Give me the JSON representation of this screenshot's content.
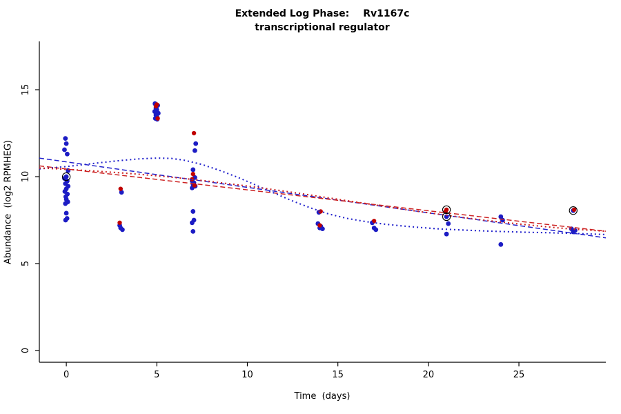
{
  "title": {
    "part1": "Extended Log Phase:",
    "part2": "Rv1167c",
    "line2": "transcriptional regulator"
  },
  "chart_data": {
    "type": "scatter",
    "title": "Extended Log Phase: Rv1167c  transcriptional regulator",
    "xlabel": "Time  (days)",
    "ylabel": "Abundance  (log2 RPMHEG)",
    "xlim": [
      -1.49,
      29.8
    ],
    "ylim": [
      -0.675,
      17.78
    ],
    "xticks": [
      0,
      5,
      10,
      15,
      20,
      25
    ],
    "yticks": [
      0,
      5,
      10,
      15
    ],
    "grid": false,
    "legend": "none",
    "series": [
      {
        "name": "blue-replicates",
        "color": "#1C1CC4",
        "marker": "circle",
        "radius": 3.4,
        "points": [
          [
            -0.05,
            12.2
          ],
          [
            0.0,
            11.9
          ],
          [
            -0.1,
            11.55
          ],
          [
            0.05,
            11.3
          ],
          [
            0.1,
            10.35
          ],
          [
            0.0,
            10.0
          ],
          [
            -0.1,
            9.9
          ],
          [
            0.05,
            9.75
          ],
          [
            -0.05,
            9.6
          ],
          [
            0.1,
            9.45
          ],
          [
            0.0,
            9.3
          ],
          [
            -0.08,
            9.15
          ],
          [
            0.06,
            9.0
          ],
          [
            -0.03,
            8.85
          ],
          [
            0.0,
            8.7
          ],
          [
            0.08,
            8.55
          ],
          [
            -0.05,
            8.45
          ],
          [
            0.0,
            7.9
          ],
          [
            0.04,
            7.6
          ],
          [
            -0.04,
            7.5
          ],
          [
            3.05,
            9.1
          ],
          [
            2.95,
            7.2
          ],
          [
            3.0,
            7.05
          ],
          [
            3.1,
            6.95
          ],
          [
            4.9,
            14.2
          ],
          [
            5.05,
            14.1
          ],
          [
            4.95,
            13.95
          ],
          [
            5.0,
            13.85
          ],
          [
            4.88,
            13.75
          ],
          [
            5.08,
            13.65
          ],
          [
            4.95,
            13.55
          ],
          [
            5.0,
            13.45
          ],
          [
            4.92,
            13.35
          ],
          [
            5.02,
            13.3
          ],
          [
            7.15,
            11.9
          ],
          [
            7.1,
            11.5
          ],
          [
            7.0,
            10.4
          ],
          [
            7.1,
            9.95
          ],
          [
            6.95,
            9.75
          ],
          [
            7.05,
            9.65
          ],
          [
            7.0,
            9.55
          ],
          [
            7.12,
            9.45
          ],
          [
            6.95,
            9.35
          ],
          [
            7.0,
            8.0
          ],
          [
            7.05,
            7.5
          ],
          [
            6.95,
            7.35
          ],
          [
            7.0,
            6.85
          ],
          [
            13.95,
            7.95
          ],
          [
            13.9,
            7.3
          ],
          [
            14.05,
            7.15
          ],
          [
            14.0,
            7.05
          ],
          [
            14.15,
            7.0
          ],
          [
            16.9,
            7.35
          ],
          [
            17.0,
            7.05
          ],
          [
            17.1,
            6.95
          ],
          [
            21.0,
            7.7
          ],
          [
            21.1,
            7.3
          ],
          [
            21.0,
            6.7
          ],
          [
            24.0,
            7.7
          ],
          [
            24.1,
            7.5
          ],
          [
            24.0,
            6.1
          ],
          [
            28.0,
            8.05
          ],
          [
            27.9,
            7.0
          ],
          [
            28.1,
            6.9
          ],
          [
            28.0,
            6.82
          ]
        ]
      },
      {
        "name": "red-replicates",
        "color": "#C00000",
        "marker": "circle",
        "radius": 3.2,
        "points": [
          [
            3.0,
            9.3
          ],
          [
            2.95,
            7.35
          ],
          [
            5.0,
            14.15
          ],
          [
            4.95,
            14.05
          ],
          [
            5.05,
            13.35
          ],
          [
            7.05,
            12.5
          ],
          [
            7.0,
            10.15
          ],
          [
            6.95,
            9.85
          ],
          [
            7.08,
            9.5
          ],
          [
            14.05,
            8.0
          ],
          [
            14.0,
            7.2
          ],
          [
            17.0,
            7.45
          ],
          [
            21.0,
            8.1
          ],
          [
            20.95,
            8.0
          ],
          [
            28.05,
            8.1
          ]
        ]
      }
    ],
    "highlight_markers": {
      "name": "circled-points",
      "stroke": "#000000",
      "radius": 5.6,
      "points": [
        [
          0.0,
          10.0
        ],
        [
          21.0,
          8.1
        ],
        [
          21.0,
          7.7
        ],
        [
          28.0,
          8.05
        ]
      ]
    },
    "lines": [
      {
        "name": "blue-linear-fit",
        "color": "#2222CC",
        "dash": "7,4",
        "width": 1.5,
        "points": [
          [
            -1.49,
            11.07
          ],
          [
            29.8,
            6.48
          ]
        ]
      },
      {
        "name": "red-linear-fit",
        "color": "#CC2222",
        "dash": "7,4",
        "width": 1.5,
        "points": [
          [
            -1.49,
            10.62
          ],
          [
            29.8,
            6.86
          ]
        ]
      },
      {
        "name": "blue-smooth-fit",
        "color": "#2222CC",
        "dash": "2,4",
        "width": 2.1,
        "points": [
          [
            -1.49,
            10.45
          ],
          [
            0,
            10.58
          ],
          [
            1,
            10.7
          ],
          [
            2,
            10.82
          ],
          [
            3,
            10.93
          ],
          [
            4,
            11.02
          ],
          [
            5,
            11.07
          ],
          [
            5.8,
            11.05
          ],
          [
            6.5,
            10.95
          ],
          [
            7.5,
            10.7
          ],
          [
            8.5,
            10.35
          ],
          [
            9.5,
            9.95
          ],
          [
            10.5,
            9.5
          ],
          [
            11.5,
            9.05
          ],
          [
            12.5,
            8.6
          ],
          [
            13.5,
            8.2
          ],
          [
            14.5,
            7.85
          ],
          [
            15.5,
            7.6
          ],
          [
            16.5,
            7.42
          ],
          [
            17.5,
            7.28
          ],
          [
            18.5,
            7.17
          ],
          [
            19.5,
            7.08
          ],
          [
            20.5,
            7.0
          ],
          [
            21.5,
            6.95
          ],
          [
            22.5,
            6.9
          ],
          [
            23.5,
            6.86
          ],
          [
            24.5,
            6.83
          ],
          [
            25.5,
            6.8
          ],
          [
            26.5,
            6.78
          ],
          [
            27.5,
            6.75
          ],
          [
            28.5,
            6.72
          ],
          [
            29.8,
            6.67
          ]
        ]
      },
      {
        "name": "red-smooth-fit",
        "color": "#CC2222",
        "dash": "2,4",
        "width": 2.1,
        "points": [
          [
            -1.49,
            10.5
          ],
          [
            0,
            10.42
          ],
          [
            1,
            10.36
          ],
          [
            2,
            10.29
          ],
          [
            3,
            10.22
          ],
          [
            4,
            10.14
          ],
          [
            5,
            10.05
          ],
          [
            6,
            9.95
          ],
          [
            7,
            9.84
          ],
          [
            8,
            9.72
          ],
          [
            9,
            9.59
          ],
          [
            10,
            9.46
          ],
          [
            11,
            9.32
          ],
          [
            12,
            9.17
          ],
          [
            13,
            9.02
          ],
          [
            14,
            8.86
          ],
          [
            15,
            8.7
          ],
          [
            16,
            8.54
          ],
          [
            17,
            8.38
          ],
          [
            18,
            8.22
          ],
          [
            19,
            8.07
          ],
          [
            20,
            7.92
          ],
          [
            21,
            7.78
          ],
          [
            22,
            7.64
          ],
          [
            23,
            7.51
          ],
          [
            24,
            7.39
          ],
          [
            25,
            7.28
          ],
          [
            26,
            7.17
          ],
          [
            27,
            7.07
          ],
          [
            28,
            6.98
          ],
          [
            29.8,
            6.86
          ]
        ]
      }
    ]
  }
}
